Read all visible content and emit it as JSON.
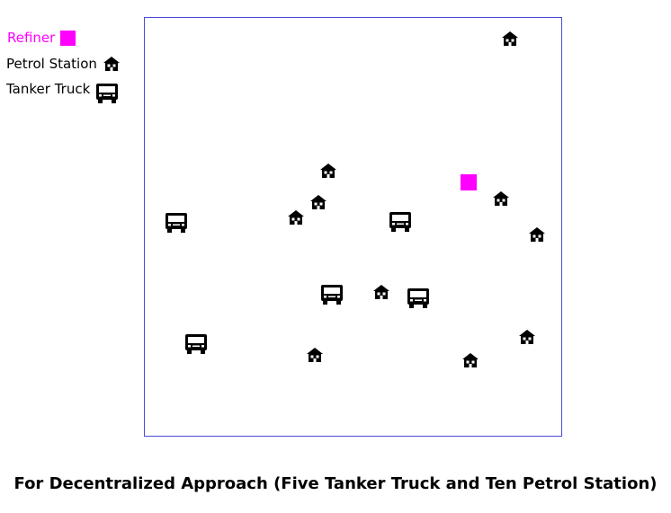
{
  "legend": {
    "refiner": "Refiner",
    "station": "Petrol Station",
    "truck": "Tanker Truck"
  },
  "caption": "For Decentralized Approach (Five Tanker Truck and Ten Petrol Station)",
  "colors": {
    "refiner": "#ff00ff",
    "border": "#4b4bd9",
    "icon": "#000000"
  },
  "icons": {
    "station": "house-icon",
    "truck": "truck-icon",
    "refiner": "square-marker"
  }
}
